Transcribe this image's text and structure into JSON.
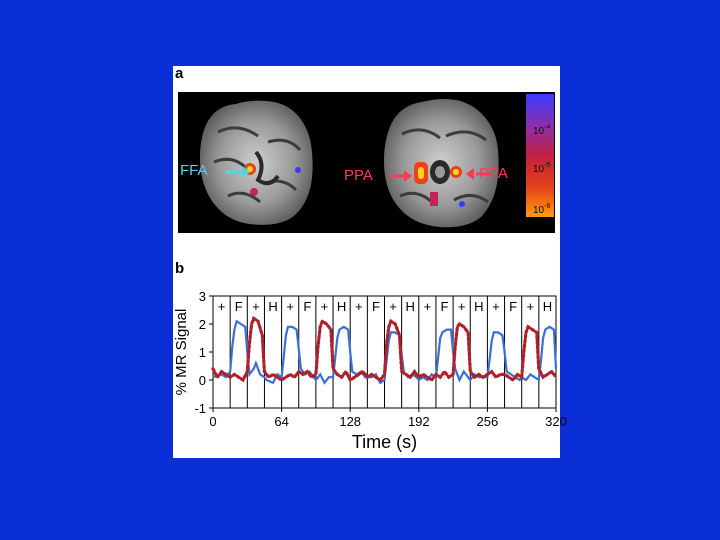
{
  "figure": {
    "panel_a": {
      "label": "a",
      "roi_labels": {
        "left": "FFA",
        "center": "PPA",
        "right": "PPA"
      },
      "colorbar_labels": [
        "10",
        "10",
        "10"
      ],
      "colorbar_exponents": [
        "-4",
        "-5",
        "-8"
      ]
    },
    "panel_b": {
      "label": "b"
    }
  },
  "colors": {
    "background": "#0b2fd6",
    "solid_series": "#3a6fd8",
    "dotted_series": "#b0202a",
    "ffa_label": "#4fd6e6",
    "ppa_label": "#ff3a55"
  },
  "chart_data": {
    "type": "line",
    "xlabel": "Time (s)",
    "ylabel": "% MR Signal",
    "xlim": [
      0,
      320
    ],
    "ylim": [
      -1,
      3
    ],
    "x_ticks": [
      0,
      64,
      128,
      192,
      256,
      320
    ],
    "y_ticks": [
      -1,
      0,
      1,
      2,
      3
    ],
    "grid": false,
    "block_boundaries": [
      0,
      16,
      32,
      48,
      64,
      80,
      96,
      112,
      128,
      144,
      160,
      176,
      192,
      208,
      224,
      240,
      256,
      272,
      288,
      304,
      320
    ],
    "block_labels": [
      "+",
      "F",
      "+",
      "H",
      "+",
      "F",
      "+",
      "H",
      "+",
      "F",
      "+",
      "H",
      "+",
      "F",
      "+",
      "H",
      "+",
      "F",
      "+",
      "H"
    ],
    "series": [
      {
        "style": "solid",
        "x": [
          0,
          8,
          12,
          16,
          18,
          20,
          22,
          26,
          30,
          32,
          34,
          38,
          40,
          44,
          48,
          50,
          56,
          60,
          64,
          66,
          68,
          70,
          74,
          78,
          80,
          82,
          86,
          90,
          94,
          96,
          100,
          104,
          108,
          112,
          114,
          116,
          118,
          122,
          126,
          128,
          130,
          134,
          138,
          142,
          144,
          148,
          152,
          156,
          160,
          162,
          164,
          166,
          170,
          174,
          176,
          178,
          182,
          186,
          190,
          192,
          196,
          200,
          204,
          208,
          210,
          212,
          214,
          218,
          222,
          224,
          226,
          230,
          234,
          238,
          240,
          244,
          248,
          252,
          256,
          258,
          260,
          262,
          266,
          270,
          272,
          274,
          278,
          282,
          286,
          288,
          292,
          296,
          300,
          304,
          306,
          308,
          310,
          314,
          318,
          320
        ],
        "y": [
          0.1,
          0.2,
          0.1,
          0.3,
          1.2,
          1.8,
          2.1,
          2.0,
          1.9,
          1.0,
          0.2,
          0.4,
          0.6,
          0.2,
          0.1,
          0.0,
          -0.1,
          0.2,
          0.1,
          0.8,
          1.6,
          1.9,
          1.9,
          1.8,
          1.1,
          0.4,
          0.2,
          0.3,
          0.1,
          0.0,
          0.2,
          -0.1,
          0.1,
          0.1,
          0.8,
          1.5,
          1.8,
          1.9,
          1.8,
          1.0,
          0.3,
          0.2,
          0.3,
          0.1,
          0.1,
          0.1,
          0.2,
          -0.1,
          0.0,
          0.7,
          1.4,
          1.7,
          1.7,
          1.6,
          0.9,
          0.3,
          0.1,
          0.2,
          0.1,
          0.0,
          0.1,
          0.0,
          0.2,
          0.1,
          0.8,
          1.5,
          1.7,
          1.8,
          1.8,
          1.0,
          0.4,
          0.0,
          0.3,
          0.1,
          0.0,
          0.2,
          0.1,
          0.1,
          0.1,
          0.7,
          1.4,
          1.7,
          1.7,
          1.6,
          1.0,
          0.3,
          0.2,
          0.1,
          0.0,
          0.1,
          0.0,
          0.2,
          0.1,
          0.0,
          0.7,
          1.5,
          1.8,
          1.9,
          1.8,
          0.4
        ]
      },
      {
        "style": "dotted",
        "x": [
          0,
          4,
          8,
          12,
          16,
          20,
          24,
          28,
          32,
          34,
          36,
          38,
          42,
          46,
          48,
          52,
          56,
          60,
          64,
          68,
          72,
          76,
          80,
          84,
          88,
          92,
          96,
          98,
          100,
          102,
          106,
          110,
          112,
          116,
          120,
          124,
          128,
          132,
          136,
          140,
          144,
          148,
          152,
          156,
          160,
          162,
          164,
          166,
          170,
          174,
          176,
          180,
          184,
          188,
          192,
          196,
          200,
          204,
          208,
          212,
          216,
          220,
          224,
          226,
          228,
          230,
          234,
          238,
          240,
          244,
          248,
          252,
          256,
          260,
          264,
          268,
          272,
          276,
          280,
          284,
          288,
          290,
          292,
          294,
          298,
          302,
          304,
          308,
          312,
          316,
          320
        ],
        "y": [
          0.4,
          0.1,
          0.3,
          0.2,
          0.1,
          0.2,
          0.1,
          0.0,
          0.3,
          1.3,
          2.0,
          2.2,
          2.1,
          1.6,
          0.3,
          0.1,
          0.2,
          0.1,
          0.0,
          0.1,
          0.2,
          0.1,
          0.3,
          0.2,
          0.3,
          0.1,
          0.2,
          1.2,
          1.9,
          2.1,
          2.0,
          1.8,
          0.4,
          0.2,
          0.1,
          0.3,
          0.0,
          0.1,
          0.2,
          0.3,
          0.1,
          0.2,
          0.1,
          0.0,
          0.2,
          1.3,
          1.9,
          2.1,
          2.0,
          1.6,
          0.3,
          0.2,
          0.1,
          0.3,
          0.1,
          0.2,
          0.1,
          0.0,
          0.2,
          0.1,
          0.3,
          0.1,
          0.2,
          1.2,
          1.9,
          2.0,
          1.9,
          1.7,
          0.3,
          0.1,
          0.2,
          0.1,
          0.2,
          0.3,
          0.1,
          0.2,
          0.2,
          0.1,
          0.0,
          0.2,
          0.1,
          1.0,
          1.7,
          1.9,
          1.8,
          1.7,
          0.4,
          0.1,
          0.2,
          0.3,
          0.1
        ]
      }
    ]
  }
}
